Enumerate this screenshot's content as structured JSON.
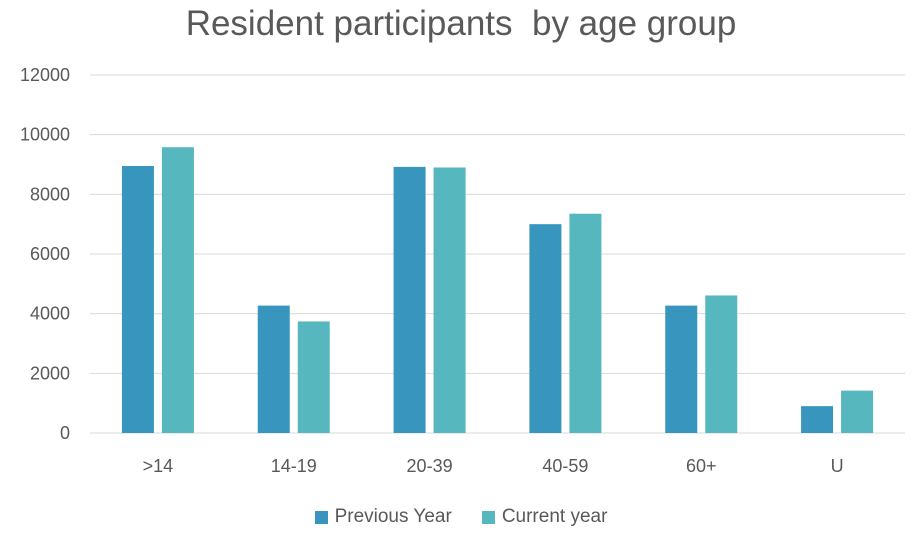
{
  "chart_data": {
    "type": "bar",
    "title": "Resident participants  by age group",
    "categories": [
      ">14",
      "14-19",
      "20-39",
      "40-59",
      "60+",
      "U"
    ],
    "series": [
      {
        "name": "Previous Year",
        "color": "#3795BE",
        "values": [
          8950,
          4270,
          8920,
          7000,
          4270,
          900
        ]
      },
      {
        "name": "Current year",
        "color": "#57B7BF",
        "values": [
          9580,
          3740,
          8900,
          7350,
          4610,
          1420
        ]
      }
    ],
    "ylim": [
      0,
      12000
    ],
    "yticks": [
      "0",
      "2000",
      "4000",
      "6000",
      "8000",
      "10000",
      "12000"
    ],
    "grid": true,
    "legend_position": "bottom"
  }
}
